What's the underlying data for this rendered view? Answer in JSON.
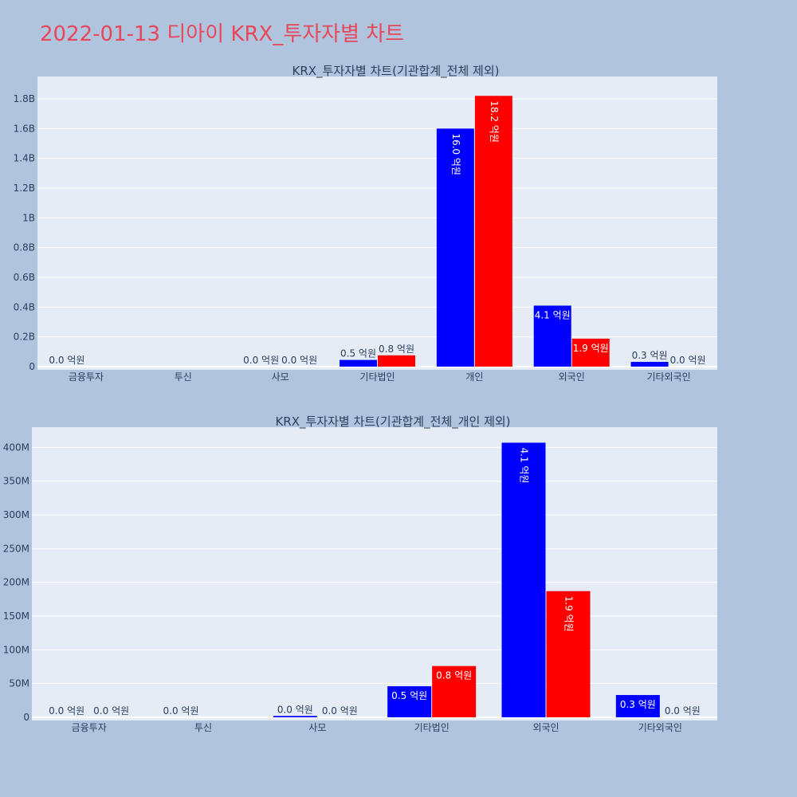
{
  "title": "2022-01-13 디아이 KRX_투자자별 차트",
  "colors": {
    "page_bg": "#b0c4de",
    "plot_bg": "#e5ecf6",
    "grid": "#ffffff",
    "title": "#e8475a",
    "text": "#2a3f5f",
    "series_a": "#0000ff",
    "series_b": "#ff0000"
  },
  "chart_data": [
    {
      "type": "bar",
      "title": "KRX_투자자별 차트(기관합계_전체 제외)",
      "categories": [
        "금융투자",
        "투신",
        "사모",
        "기타법인",
        "개인",
        "외국인",
        "기타외국인"
      ],
      "ylim": [
        0,
        1950000000
      ],
      "yticks": [
        0,
        200000000,
        400000000,
        600000000,
        800000000,
        1000000000,
        1200000000,
        1400000000,
        1600000000,
        1800000000
      ],
      "ytick_labels": [
        "0",
        "0.2B",
        "0.4B",
        "0.6B",
        "0.8B",
        "1B",
        "1.2B",
        "1.4B",
        "1.6B",
        "1.8B"
      ],
      "grid": true,
      "series": [
        {
          "values": [
            0,
            null,
            0,
            45000000,
            1600000000,
            410000000,
            32000000
          ],
          "labels": [
            "0.0 억원",
            "",
            "0.0 억원",
            "0.5 억원",
            "16.0 억원",
            "4.1 억원",
            "0.3 억원"
          ]
        },
        {
          "values": [
            null,
            null,
            0,
            76000000,
            1820000000,
            188000000,
            0
          ],
          "labels": [
            "",
            "",
            "0.0 억원",
            "0.8 억원",
            "18.2 억원",
            "1.9 억원",
            "0.0 억원"
          ]
        }
      ]
    },
    {
      "type": "bar",
      "title": "KRX_투자자별 차트(기관합계_전체_개인 제외)",
      "categories": [
        "금융투자",
        "투신",
        "사모",
        "기타법인",
        "외국인",
        "기타외국인"
      ],
      "ylim": [
        0,
        430000000
      ],
      "yticks": [
        0,
        50000000,
        100000000,
        150000000,
        200000000,
        250000000,
        300000000,
        350000000,
        400000000
      ],
      "ytick_labels": [
        "0",
        "50M",
        "100M",
        "150M",
        "200M",
        "250M",
        "300M",
        "350M",
        "400M"
      ],
      "grid": true,
      "series": [
        {
          "values": [
            0,
            0,
            2000000,
            46000000,
            407000000,
            33000000
          ],
          "labels": [
            "0.0 억원",
            "0.0 억원",
            "0.0 억원",
            "0.5 억원",
            "4.1 억원",
            "0.3 억원"
          ]
        },
        {
          "values": [
            0,
            null,
            0,
            76000000,
            187000000,
            0
          ],
          "labels": [
            "0.0 억원",
            "",
            "0.0 억원",
            "0.8 억원",
            "1.9 억원",
            "0.0 억원"
          ]
        }
      ]
    }
  ]
}
